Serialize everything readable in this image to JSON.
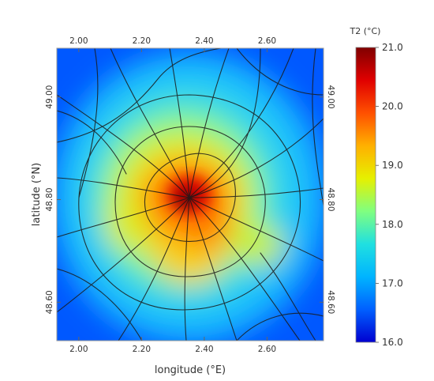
{
  "map": {
    "xaxis": {
      "label": "longitude (°E)",
      "ticks": [
        "2.00",
        "2.20",
        "2.40",
        "2.60"
      ],
      "range": [
        1.93,
        2.78
      ]
    },
    "yaxis": {
      "label": "latitude (°N)",
      "ticks": [
        "48.60",
        "48.80",
        "49.00"
      ],
      "range": [
        48.525,
        49.095
      ]
    },
    "layer": "near-surface temperature field with road network overlay",
    "colorbar": {
      "title": "T2 (°C)",
      "min": 16.0,
      "max": 21.0,
      "tick_labels": [
        "21.0",
        "20.0",
        "19.0",
        "18.0",
        "17.0",
        "16.0"
      ],
      "colors": [
        "#0000d0",
        "#0060ff",
        "#00b4ff",
        "#20e0e0",
        "#80ff80",
        "#e6f000",
        "#ffb000",
        "#ff5000",
        "#e00000",
        "#800000"
      ]
    }
  }
}
